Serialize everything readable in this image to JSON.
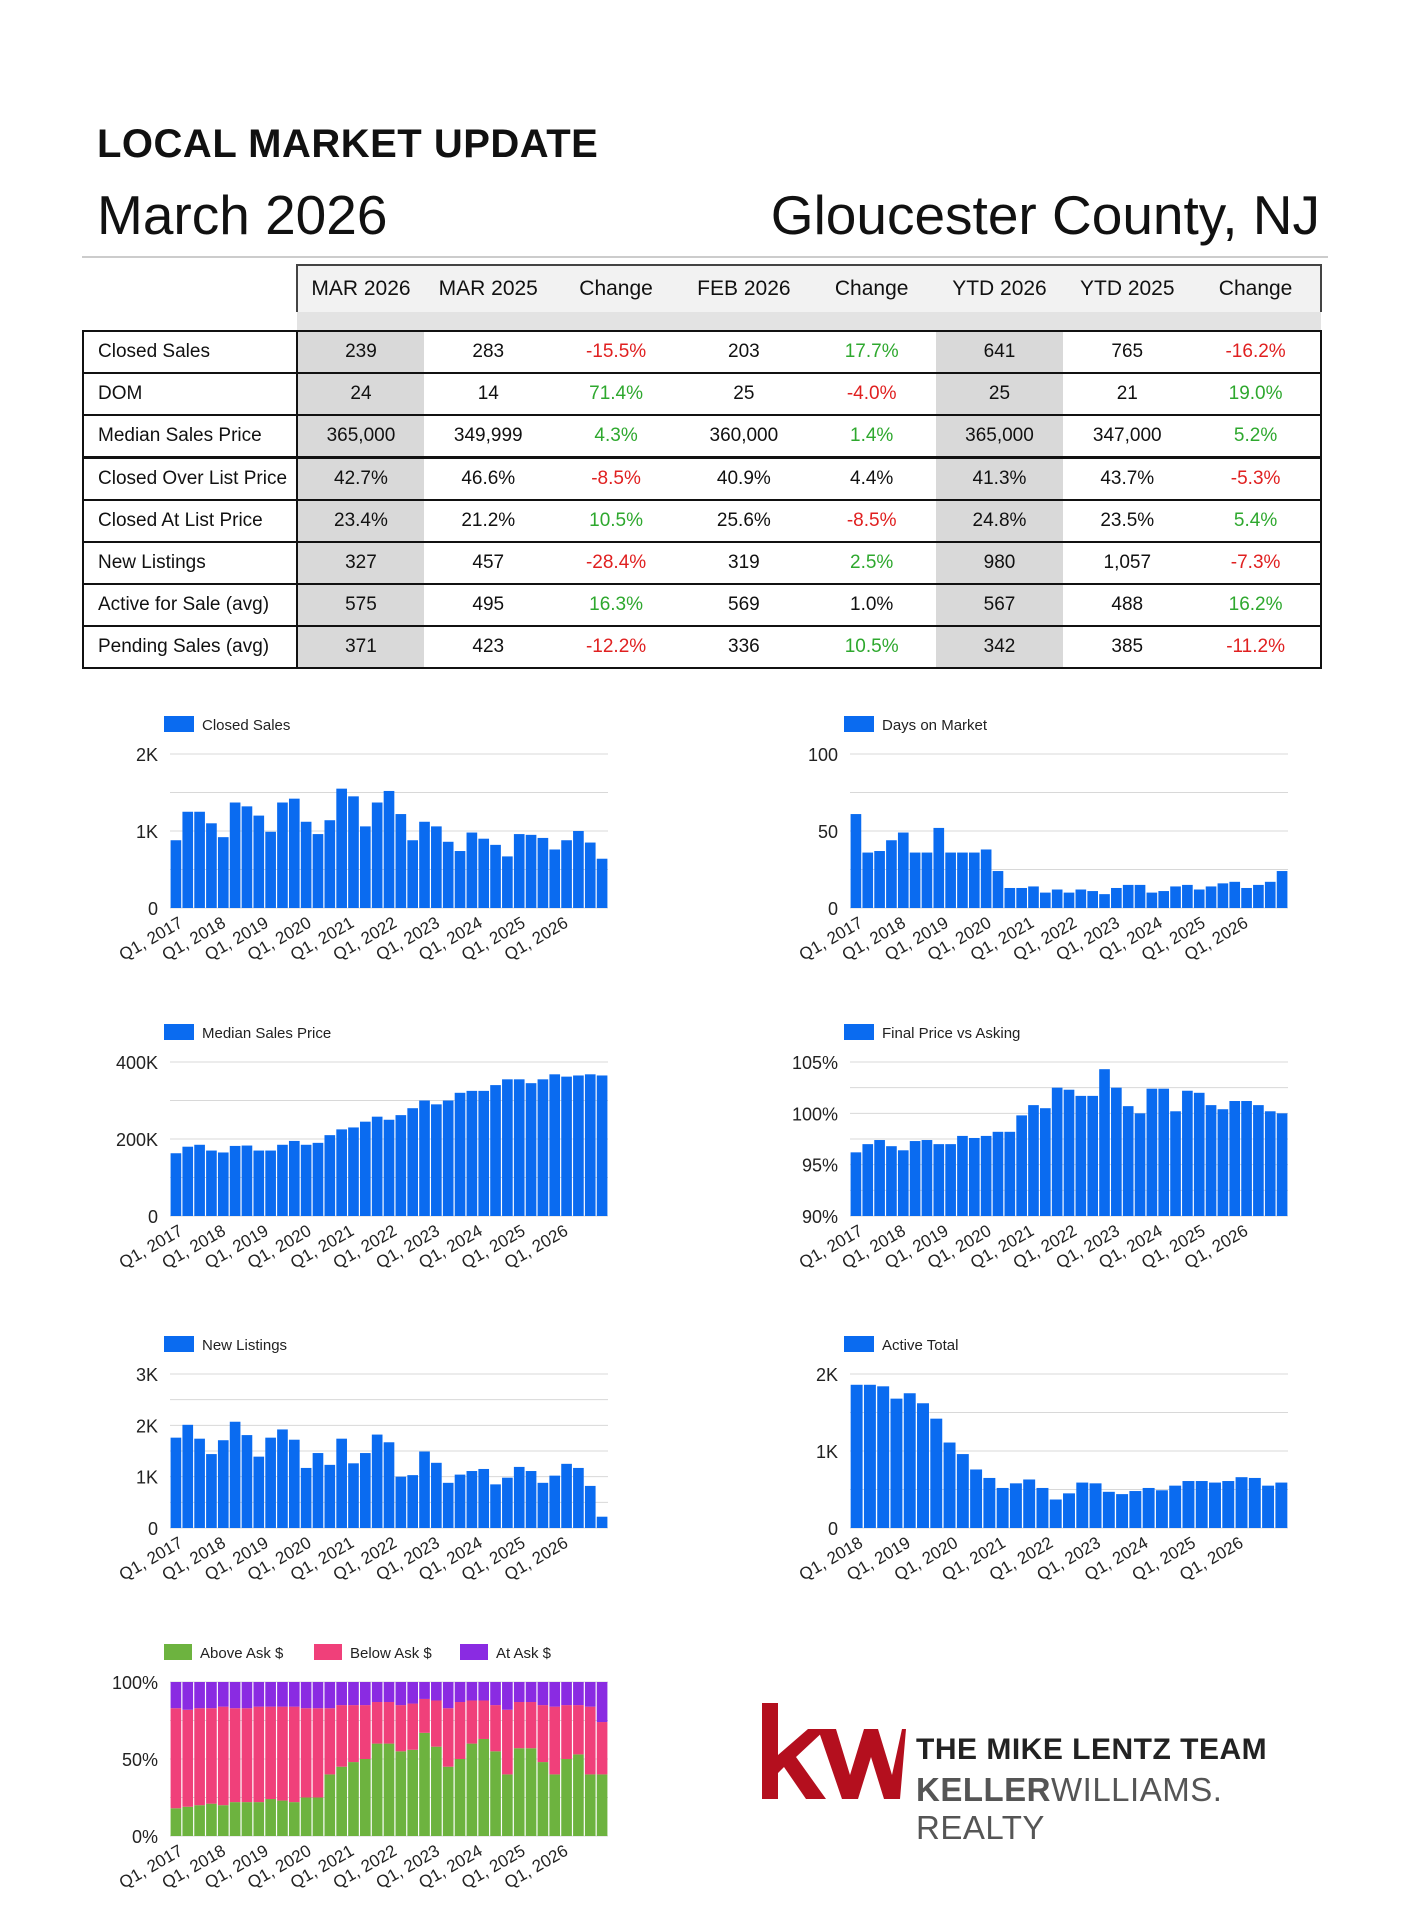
{
  "header": {
    "label": "LOCAL MARKET UPDATE",
    "date": "March 2026",
    "location": "Gloucester County, NJ"
  },
  "table": {
    "columns": [
      "MAR 2026",
      "MAR 2025",
      "Change",
      "FEB 2026",
      "Change",
      "YTD 2026",
      "YTD 2025",
      "Change"
    ],
    "rows": [
      {
        "label": "Closed Sales",
        "values": [
          "239",
          "283",
          "-15.5%",
          "203",
          "17.7%",
          "641",
          "765",
          "-16.2%"
        ]
      },
      {
        "label": "DOM",
        "values": [
          "24",
          "14",
          "71.4%",
          "25",
          "-4.0%",
          "25",
          "21",
          "19.0%"
        ]
      },
      {
        "label": "Median Sales Price",
        "values": [
          "365,000",
          "349,999",
          "4.3%",
          "360,000",
          "1.4%",
          "365,000",
          "347,000",
          "5.2%"
        ]
      },
      {
        "label": "Closed Over List Price",
        "values": [
          "42.7%",
          "46.6%",
          "-8.5%",
          "40.9%",
          "4.4%",
          "41.3%",
          "43.7%",
          "-5.3%"
        ]
      },
      {
        "label": "Closed At List Price",
        "values": [
          "23.4%",
          "21.2%",
          "10.5%",
          "25.6%",
          "-8.5%",
          "24.8%",
          "23.5%",
          "5.4%"
        ]
      },
      {
        "label": "New Listings",
        "values": [
          "327",
          "457",
          "-28.4%",
          "319",
          "2.5%",
          "980",
          "1,057",
          "-7.3%"
        ]
      },
      {
        "label": "Active for Sale (avg)",
        "values": [
          "575",
          "495",
          "16.3%",
          "569",
          "1.0%",
          "567",
          "488",
          "16.2%"
        ]
      },
      {
        "label": "Pending Sales (avg)",
        "values": [
          "371",
          "423",
          "-12.2%",
          "336",
          "10.5%",
          "342",
          "385",
          "-11.2%"
        ]
      }
    ]
  },
  "colors": {
    "bar": "#0a6bf0",
    "positive": "#2ea82e",
    "negative": "#e02020",
    "above": "#6db33f",
    "below": "#f0407a",
    "at": "#8a2be2",
    "brand": "#b40f1e"
  },
  "chart_data": [
    {
      "type": "bar",
      "legend": "Closed Sales",
      "legend_position": "top-left",
      "x_ticks": [
        "Q1, 2017",
        "Q1, 2018",
        "Q1, 2019",
        "Q1, 2020",
        "Q1, 2021",
        "Q1, 2022",
        "Q1, 2023",
        "Q1, 2024",
        "Q1, 2025",
        "Q1, 2026"
      ],
      "y_ticks": [
        "0",
        "1K",
        "2K"
      ],
      "ylim": [
        0,
        2000
      ],
      "values": [
        880,
        1250,
        1250,
        1100,
        920,
        1370,
        1320,
        1200,
        990,
        1370,
        1420,
        1120,
        960,
        1140,
        1550,
        1450,
        1060,
        1370,
        1520,
        1220,
        880,
        1120,
        1060,
        860,
        740,
        980,
        900,
        820,
        670,
        960,
        950,
        910,
        760,
        880,
        1000,
        850,
        640
      ]
    },
    {
      "type": "bar",
      "legend": "Days on Market",
      "legend_position": "top-left",
      "x_ticks": [
        "Q1, 2017",
        "Q1, 2018",
        "Q1, 2019",
        "Q1, 2020",
        "Q1, 2021",
        "Q1, 2022",
        "Q1, 2023",
        "Q1, 2024",
        "Q1, 2025",
        "Q1, 2026"
      ],
      "y_ticks": [
        "0",
        "50",
        "100"
      ],
      "ylim": [
        0,
        100
      ],
      "values": [
        61,
        36,
        37,
        44,
        49,
        36,
        36,
        52,
        36,
        36,
        36,
        38,
        24,
        13,
        13,
        14,
        10,
        12,
        10,
        12,
        11,
        9,
        13,
        15,
        15,
        10,
        11,
        14,
        15,
        12,
        14,
        16,
        17,
        13,
        15,
        17,
        24
      ]
    },
    {
      "type": "bar",
      "legend": "Median Sales Price",
      "legend_position": "top-left",
      "x_ticks": [
        "Q1, 2017",
        "Q1, 2018",
        "Q1, 2019",
        "Q1, 2020",
        "Q1, 2021",
        "Q1, 2022",
        "Q1, 2023",
        "Q1, 2024",
        "Q1, 2025",
        "Q1, 2026"
      ],
      "y_ticks": [
        "0",
        "200K",
        "400K"
      ],
      "ylim": [
        0,
        400000
      ],
      "values": [
        163000,
        180000,
        185000,
        170000,
        165000,
        182000,
        183000,
        170000,
        170000,
        185000,
        195000,
        185000,
        190000,
        210000,
        225000,
        230000,
        245000,
        258000,
        250000,
        262000,
        280000,
        300000,
        290000,
        300000,
        320000,
        325000,
        325000,
        340000,
        355000,
        355000,
        345000,
        355000,
        368000,
        362000,
        365000,
        368000,
        365000
      ]
    },
    {
      "type": "bar",
      "legend": "Final Price vs Asking",
      "legend_position": "top-left",
      "x_ticks": [
        "Q1, 2017",
        "Q1, 2018",
        "Q1, 2019",
        "Q1, 2020",
        "Q1, 2021",
        "Q1, 2022",
        "Q1, 2023",
        "Q1, 2024",
        "Q1, 2025",
        "Q1, 2026"
      ],
      "y_ticks": [
        "90%",
        "95%",
        "100%",
        "105%"
      ],
      "ylim": [
        90,
        105
      ],
      "values": [
        96.2,
        97.0,
        97.4,
        96.8,
        96.4,
        97.3,
        97.4,
        97.0,
        97.0,
        97.8,
        97.6,
        97.8,
        98.2,
        98.2,
        99.8,
        100.8,
        100.5,
        102.5,
        102.3,
        101.7,
        101.7,
        104.3,
        102.5,
        100.7,
        100.0,
        102.4,
        102.4,
        100.2,
        102.2,
        102.0,
        100.8,
        100.4,
        101.2,
        101.2,
        100.8,
        100.2,
        100.0
      ]
    },
    {
      "type": "bar",
      "legend": "New Listings",
      "legend_position": "top-left",
      "x_ticks": [
        "Q1, 2017",
        "Q1, 2018",
        "Q1, 2019",
        "Q1, 2020",
        "Q1, 2021",
        "Q1, 2022",
        "Q1, 2023",
        "Q1, 2024",
        "Q1, 2025",
        "Q1, 2026"
      ],
      "y_ticks": [
        "0",
        "1K",
        "2K",
        "3K"
      ],
      "ylim": [
        0,
        3000
      ],
      "values": [
        1760,
        2010,
        1740,
        1440,
        1710,
        2070,
        1810,
        1390,
        1760,
        1920,
        1720,
        1170,
        1460,
        1230,
        1740,
        1260,
        1460,
        1820,
        1670,
        1000,
        1030,
        1490,
        1270,
        880,
        1040,
        1110,
        1150,
        850,
        980,
        1190,
        1110,
        880,
        1020,
        1250,
        1170,
        820,
        220
      ]
    },
    {
      "type": "bar",
      "legend": "Active Total",
      "legend_position": "top-left",
      "x_ticks": [
        "Q1, 2018",
        "Q1, 2019",
        "Q1, 2020",
        "Q1, 2021",
        "Q1, 2022",
        "Q1, 2023",
        "Q1, 2024",
        "Q1, 2025",
        "Q1, 2026"
      ],
      "y_ticks": [
        "0",
        "1K",
        "2K"
      ],
      "ylim": [
        0,
        2000
      ],
      "values": [
        1860,
        1860,
        1840,
        1680,
        1750,
        1620,
        1420,
        1110,
        960,
        760,
        650,
        520,
        580,
        630,
        520,
        370,
        450,
        590,
        580,
        470,
        440,
        480,
        520,
        490,
        550,
        610,
        610,
        590,
        610,
        660,
        650,
        550,
        590
      ]
    },
    {
      "type": "bar",
      "stacked": true,
      "legend_position": "top-left",
      "x_ticks": [
        "Q1, 2017",
        "Q1, 2018",
        "Q1, 2019",
        "Q1, 2020",
        "Q1, 2021",
        "Q1, 2022",
        "Q1, 2023",
        "Q1, 2024",
        "Q1, 2025",
        "Q1, 2026"
      ],
      "y_ticks": [
        "0%",
        "50%",
        "100%"
      ],
      "ylim": [
        0,
        100
      ],
      "series": [
        {
          "name": "Above Ask $",
          "values": [
            18,
            19,
            20,
            21,
            20,
            22,
            22,
            22,
            24,
            23,
            22,
            25,
            25,
            40,
            45,
            48,
            50,
            60,
            60,
            55,
            56,
            67,
            58,
            45,
            50,
            60,
            63,
            55,
            40,
            57,
            57,
            48,
            40,
            50,
            53,
            40,
            40
          ]
        },
        {
          "name": "Below Ask $",
          "values": [
            65,
            63,
            63,
            62,
            64,
            61,
            61,
            62,
            60,
            61,
            62,
            58,
            58,
            43,
            40,
            37,
            35,
            27,
            27,
            30,
            30,
            22,
            30,
            38,
            37,
            28,
            25,
            30,
            42,
            30,
            30,
            37,
            44,
            35,
            32,
            44,
            34
          ]
        },
        {
          "name": "At Ask $",
          "values": [
            17,
            18,
            17,
            17,
            16,
            17,
            17,
            16,
            16,
            16,
            16,
            17,
            17,
            17,
            15,
            15,
            15,
            13,
            13,
            15,
            14,
            11,
            12,
            17,
            13,
            12,
            12,
            15,
            18,
            13,
            13,
            15,
            16,
            15,
            15,
            16,
            26
          ]
        }
      ]
    }
  ],
  "brand": {
    "logo_text": "kw",
    "team": "THE MIKE LENTZ TEAM",
    "company_bold": "KELLER",
    "company_rest": "WILLIAMS. REALTY"
  }
}
